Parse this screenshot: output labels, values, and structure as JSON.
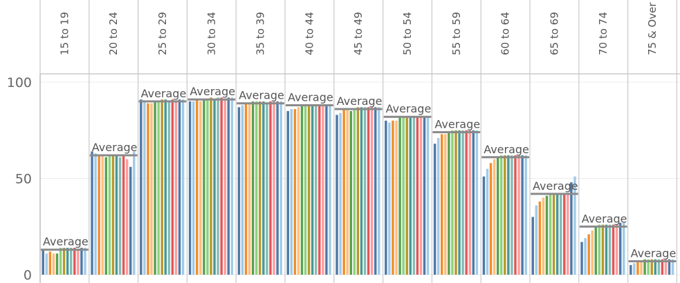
{
  "chart_data": {
    "type": "bar",
    "categories": [
      "15 to 19",
      "20 to 24",
      "25 to 29",
      "30 to 34",
      "35 to 39",
      "40 to 44",
      "45 to 49",
      "50 to 54",
      "55 to 59",
      "60 to 64",
      "65 to 69",
      "70 to 74",
      "75 & Over"
    ],
    "series_colors": [
      "#4e79a7",
      "#a0cbe8",
      "#f28e2b",
      "#ffbe7d",
      "#59a14f",
      "#8cd17d",
      "#b6992d",
      "#499894",
      "#86bcb6",
      "#e15759",
      "#ff9d9a"
    ],
    "values": [
      [
        13,
        11,
        12,
        11,
        11,
        14,
        14,
        14,
        14,
        14,
        13,
        14,
        14
      ],
      [
        64,
        63,
        62,
        62,
        61,
        62,
        62,
        62,
        61,
        62,
        60,
        56,
        64
      ],
      [
        91,
        90,
        89,
        89,
        90,
        90,
        91,
        91,
        90,
        91,
        90,
        91,
        91
      ],
      [
        90,
        90,
        91,
        90,
        91,
        91,
        92,
        91,
        92,
        92,
        91,
        92,
        92
      ],
      [
        87,
        88,
        89,
        89,
        90,
        90,
        90,
        90,
        89,
        90,
        90,
        90,
        90
      ],
      [
        85,
        86,
        86,
        87,
        88,
        88,
        88,
        88,
        88,
        88,
        88,
        88,
        88
      ],
      [
        83,
        84,
        86,
        86,
        85,
        86,
        87,
        87,
        87,
        87,
        87,
        87,
        87
      ],
      [
        80,
        79,
        80,
        80,
        82,
        82,
        82,
        82,
        82,
        82,
        82,
        82,
        82
      ],
      [
        68,
        71,
        73,
        73,
        74,
        75,
        75,
        75,
        75,
        75,
        75,
        75,
        75
      ],
      [
        51,
        55,
        58,
        60,
        61,
        62,
        62,
        62,
        62,
        62,
        62,
        62,
        62
      ],
      [
        30,
        36,
        38,
        40,
        41,
        42,
        42,
        42,
        42,
        42,
        42,
        48,
        51
      ],
      [
        17,
        19,
        21,
        23,
        25,
        26,
        26,
        26,
        26,
        26,
        26,
        27,
        27
      ],
      [
        5,
        6,
        7,
        7,
        8,
        8,
        8,
        8,
        8,
        8,
        8,
        8,
        8
      ]
    ],
    "averages": [
      13,
      62,
      90,
      91,
      89,
      88,
      86,
      82,
      74,
      61,
      42,
      25,
      7
    ],
    "reference_label": "Average",
    "yticks": [
      0,
      50,
      100
    ],
    "ylim": [
      0,
      100
    ],
    "grid": true
  }
}
